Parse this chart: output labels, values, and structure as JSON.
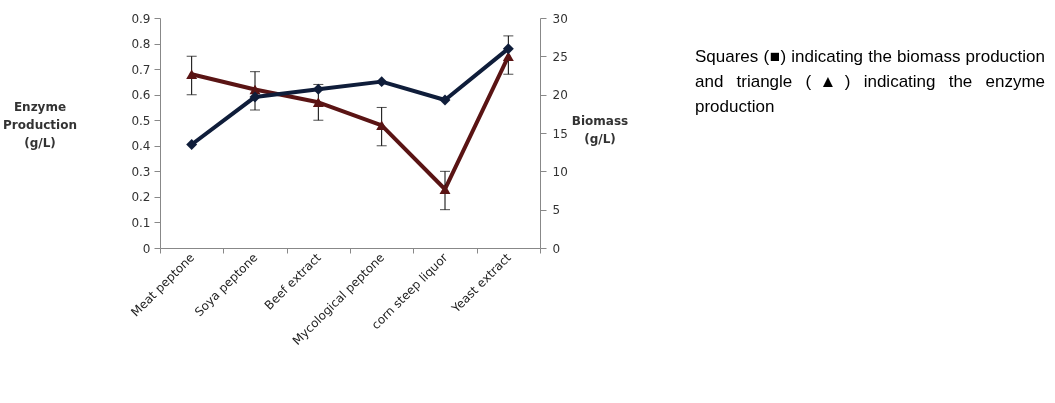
{
  "chart_data": {
    "type": "line",
    "ylabel": "Enzyme Production (g/L)",
    "y2label": "Biomass (g/L)",
    "categories": [
      "Meat peptone",
      "Soya peptone",
      "Beef extract",
      "Mycological peptone",
      "corn steep liquor",
      "Yeast extract"
    ],
    "series": [
      {
        "color": "#5a1414",
        "marker": "triangle",
        "values": [
          0.68,
          0.62,
          0.57,
          0.48,
          0.23,
          0.75
        ],
        "errors": [
          [
            0.6,
            0.75
          ],
          [
            0.54,
            0.69
          ],
          [
            0.5,
            0.64
          ],
          [
            0.4,
            0.55
          ],
          [
            0.15,
            0.3
          ],
          [
            0.68,
            0.83
          ]
        ]
      },
      {
        "color": "#0f1d3a",
        "marker": "diamond",
        "axis": "y2",
        "values": [
          13.5,
          19.7,
          20.7,
          21.7,
          19.3,
          26.0
        ]
      }
    ],
    "ylim": [
      0,
      0.9
    ],
    "yticks": [
      0,
      0.1,
      0.2,
      0.3,
      0.4,
      0.5,
      0.6,
      0.7,
      0.8,
      0.9
    ],
    "y2lim": [
      0,
      30
    ],
    "y2ticks": [
      0,
      5,
      10,
      15,
      20,
      25,
      30
    ],
    "annotations": [
      "Squares (■) indicating the biomass production and triangle (▲) indicating the enzyme production"
    ]
  }
}
